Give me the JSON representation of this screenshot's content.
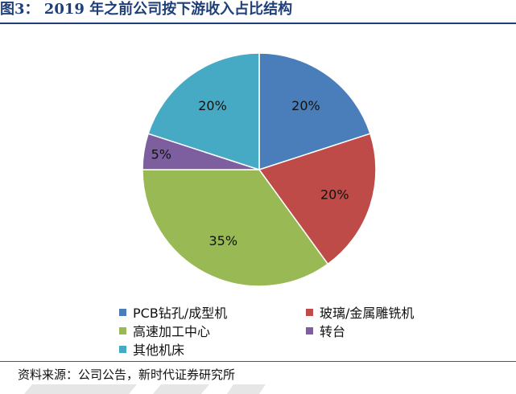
{
  "figure": {
    "title": "图3： 2019 年之前公司按下游收入占比结构",
    "source": "资料来源：公司公告，新时代证券研究所"
  },
  "chart_data": {
    "type": "pie",
    "categories": [
      "PCB钻孔/成型机",
      "玻璃/金属雕铣机",
      "高速加工中心",
      "转台",
      "其他机床"
    ],
    "values": [
      20,
      20,
      35,
      5,
      20
    ],
    "data_labels": [
      "20%",
      "20%",
      "35%",
      "5%",
      "20%"
    ],
    "colors": [
      "#4a7ebb",
      "#be4b48",
      "#98b954",
      "#7d5fa0",
      "#46aac5"
    ],
    "title": "",
    "legend_position": "bottom"
  }
}
